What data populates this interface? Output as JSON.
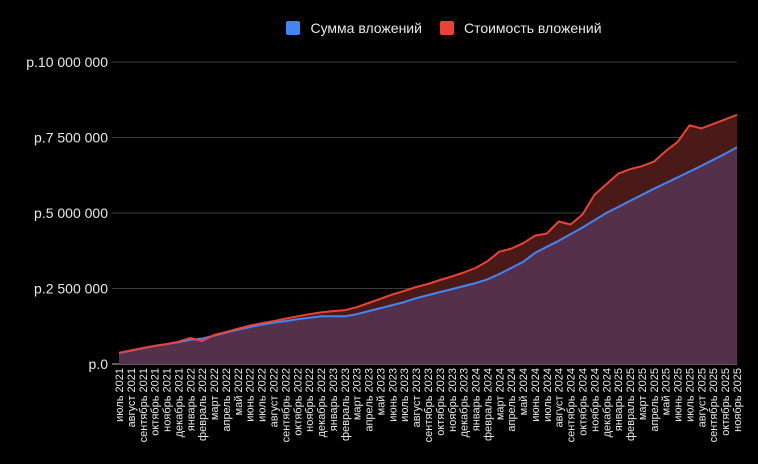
{
  "chart_data": {
    "type": "area",
    "title": "",
    "xlabel": "",
    "ylabel": "",
    "ylim": [
      0,
      10000000
    ],
    "y_ticks": [
      0,
      2500000,
      5000000,
      7500000,
      10000000
    ],
    "y_tick_labels": [
      "р.0",
      "р.2 500 000",
      "р.5 000 000",
      "р.7 500 000",
      "р.10 000 000"
    ],
    "grid": true,
    "legend_position": "top",
    "categories": [
      "июль 2021",
      "август 2021",
      "сентябрь 2021",
      "октябрь 2021",
      "ноябрь 2021",
      "декабрь 2021",
      "январь 2022",
      "февраль 2022",
      "март 2022",
      "апрель 2022",
      "май 2022",
      "июнь 2022",
      "июль 2022",
      "август 2022",
      "сентябрь 2022",
      "октябрь 2022",
      "ноябрь 2022",
      "декабрь 2022",
      "январь 2023",
      "февраль 2023",
      "март 2023",
      "апрель 2023",
      "май 2023",
      "июнь 2023",
      "июль 2023",
      "август 2023",
      "сентябрь 2023",
      "октябрь 2023",
      "ноябрь 2023",
      "декабрь 2023",
      "январь 2024",
      "февраль 2024",
      "март 2024",
      "апрель 2024",
      "май 2024",
      "июнь 2024",
      "июль 2024",
      "август 2024",
      "сентябрь 2024",
      "октябрь 2024",
      "ноябрь 2024",
      "декабрь 2024",
      "январь 2025",
      "февраль 2025",
      "март 2025",
      "апрель 2025",
      "май 2025",
      "июнь 2025",
      "июль 2025",
      "август 2025",
      "сентябрь 2025",
      "октябрь 2025",
      "ноябрь 2025"
    ],
    "series": [
      {
        "name": "Сумма вложений",
        "color": "#4285f4",
        "values": [
          360000,
          440000,
          520000,
          600000,
          660000,
          720000,
          800000,
          840000,
          940000,
          1040000,
          1140000,
          1220000,
          1300000,
          1370000,
          1420000,
          1480000,
          1530000,
          1580000,
          1580000,
          1580000,
          1650000,
          1750000,
          1850000,
          1950000,
          2050000,
          2180000,
          2280000,
          2380000,
          2480000,
          2580000,
          2680000,
          2800000,
          2980000,
          3180000,
          3380000,
          3680000,
          3880000,
          4080000,
          4300000,
          4520000,
          4760000,
          5000000,
          5200000,
          5400000,
          5600000,
          5800000,
          5990000,
          6180000,
          6370000,
          6560000,
          6760000,
          6960000,
          7180000
        ]
      },
      {
        "name": "Стоимость вложений",
        "color": "#ea4335",
        "values": [
          370000,
          450000,
          530000,
          600000,
          660000,
          740000,
          860000,
          760000,
          960000,
          1060000,
          1170000,
          1270000,
          1350000,
          1420000,
          1500000,
          1580000,
          1650000,
          1710000,
          1750000,
          1780000,
          1880000,
          2020000,
          2160000,
          2300000,
          2420000,
          2550000,
          2650000,
          2780000,
          2900000,
          3030000,
          3180000,
          3400000,
          3720000,
          3820000,
          4000000,
          4250000,
          4320000,
          4720000,
          4620000,
          4950000,
          5600000,
          5950000,
          6300000,
          6450000,
          6550000,
          6700000,
          7050000,
          7350000,
          7900000,
          7800000,
          7950000,
          8100000,
          8250000
        ]
      }
    ]
  }
}
